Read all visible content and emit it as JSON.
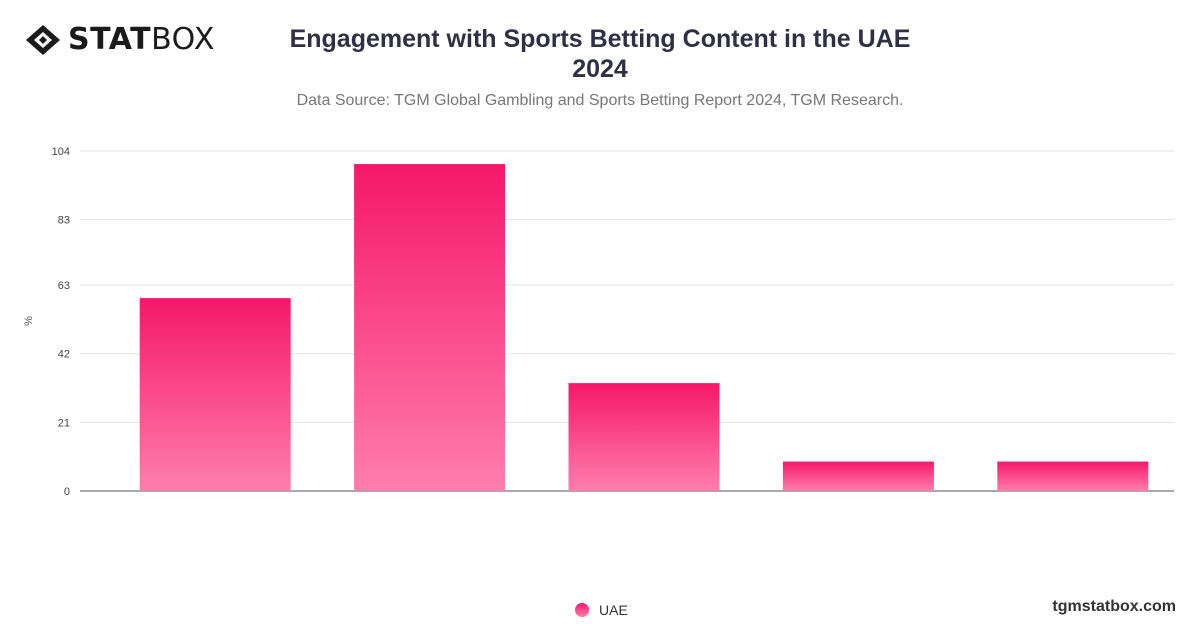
{
  "brand": {
    "logo_strong": "STAT",
    "logo_light": "BOX",
    "site": "tgmstatbox.com"
  },
  "colors": {
    "bar_top": "#f5176b",
    "bar_bottom": "#ff7eac",
    "grid": "#e3e3e3",
    "axis": "#555555"
  },
  "chart_data": {
    "type": "bar",
    "title_line1": "Engagement with Sports Betting Content in the UAE",
    "title_line2": "2024",
    "subtitle": "Data Source: TGM Global Gambling and Sports Betting Report 2024, TGM Research.",
    "ylabel": "%",
    "xlabel": "",
    "ylim": [
      0,
      104
    ],
    "yticks": [
      "0",
      "21",
      "42",
      "63",
      "83",
      "104"
    ],
    "categories": [
      "",
      "",
      "",
      "",
      ""
    ],
    "series": [
      {
        "name": "UAE",
        "values": [
          59,
          100,
          33,
          9,
          9
        ]
      }
    ],
    "grid": true,
    "legend": "bottom-center"
  }
}
